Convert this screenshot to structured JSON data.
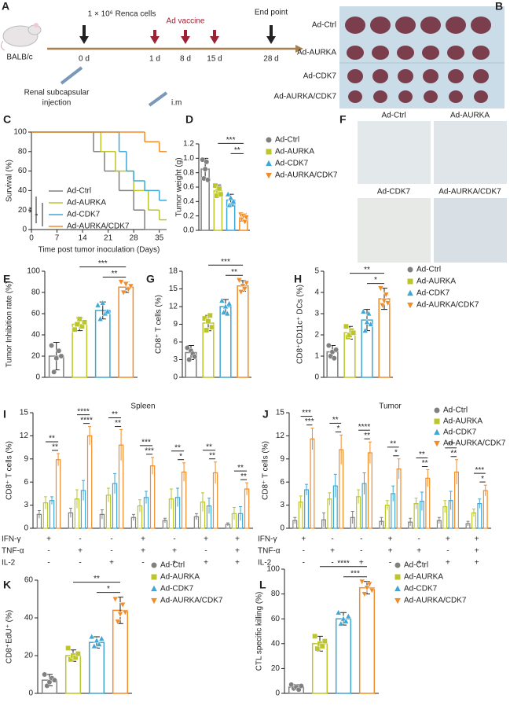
{
  "panel_a": {
    "label": "A",
    "mouse": "BALB/c",
    "cells": "1 × 10⁶ Renca cells",
    "vaccine": "Ad vaccine",
    "end": "End point",
    "days": [
      "0 d",
      "1 d",
      "8 d",
      "15 d",
      "28 d"
    ],
    "injection": [
      "Renal subcapsular",
      "injection"
    ],
    "route": "i.m"
  },
  "panel_b": {
    "label": "B",
    "rows": [
      "Ad-Ctrl",
      "Ad-AURKA",
      "Ad-CDK7",
      "Ad-AURKA/CDK7"
    ]
  },
  "panel_f": {
    "label": "F",
    "images": [
      "Ad-Ctrl",
      "Ad-AURKA",
      "Ad-CDK7",
      "Ad-AURKA/CDK7"
    ]
  },
  "chart_data": [
    {
      "panel": "C",
      "type": "survival",
      "xlabel": "Time post tumor inoculation (Days)",
      "ylabel": "Survival (%)",
      "xlim": [
        0,
        37
      ],
      "xticks": [
        0,
        7,
        14,
        21,
        28,
        35
      ],
      "ylim": [
        0,
        100
      ],
      "yticks": [
        0,
        20,
        40,
        60,
        80,
        100
      ],
      "series": [
        {
          "name": "Ad-Ctrl",
          "color": "#808080",
          "x": [
            0,
            17,
            20,
            24,
            28,
            31
          ],
          "values": [
            100,
            80,
            60,
            40,
            20,
            0
          ]
        },
        {
          "name": "Ad-AURKA",
          "color": "#bcc52a",
          "x": [
            0,
            19,
            23,
            28,
            32,
            35
          ],
          "values": [
            100,
            80,
            60,
            40,
            20,
            10
          ]
        },
        {
          "name": "Ad-CDK7",
          "color": "#3ea7d6",
          "x": [
            0,
            24,
            26,
            28,
            31,
            35
          ],
          "values": [
            100,
            80,
            60,
            50,
            40,
            30
          ]
        },
        {
          "name": "Ad-AURKA/CDK7",
          "color": "#f28c28",
          "x": [
            0,
            31,
            35
          ],
          "values": [
            100,
            90,
            80
          ]
        }
      ],
      "annotations": [
        "**",
        "*"
      ]
    },
    {
      "panel": "D",
      "type": "bar",
      "ylabel": "Tumor weight (g)",
      "ylim": [
        0,
        1.2
      ],
      "yticks": [
        {
          "value": 0,
          "label": "0.0"
        },
        0.2,
        0.4,
        0.6,
        0.8,
        {
          "value": 1,
          "label": "1.0"
        },
        1.2
      ],
      "categories": [
        "Ad-Ctrl",
        "Ad-AURKA",
        "Ad-CDK7",
        "Ad-AURKA/CDK7"
      ],
      "colors": [
        "#808080",
        "#bcc52a",
        "#3ea7d6",
        "#f28c28"
      ],
      "markers": [
        "circle",
        "square",
        "triangle-up",
        "triangle-down"
      ],
      "values": [
        0.85,
        0.55,
        0.42,
        0.18
      ],
      "errors": [
        0.15,
        0.08,
        0.08,
        0.05
      ],
      "points": [
        [
          0.98,
          0.72,
          0.85,
          0.95,
          0.7
        ],
        [
          0.62,
          0.48,
          0.55,
          0.58,
          0.5
        ],
        [
          0.5,
          0.35,
          0.45,
          0.38,
          0.4
        ],
        [
          0.22,
          0.15,
          0.2,
          0.12,
          0.18
        ]
      ],
      "annotations": [
        {
          "text": "***",
          "groups": [
            1,
            3
          ]
        },
        {
          "text": "**",
          "groups": [
            2,
            3
          ]
        }
      ]
    },
    {
      "panel": "E",
      "type": "bar",
      "ylabel": "Tumor Inhibition rate (%)",
      "ylim": [
        0,
        100
      ],
      "yticks": [
        0,
        20,
        40,
        60,
        80,
        100
      ],
      "colors": [
        "#808080",
        "#bcc52a",
        "#3ea7d6",
        "#f28c28"
      ],
      "markers": [
        "circle",
        "square",
        "triangle-up",
        "triangle-down"
      ],
      "values": [
        20,
        50,
        63,
        85
      ],
      "errors": [
        13,
        6,
        8,
        5
      ],
      "points": [
        [
          30,
          5,
          18,
          25,
          20
        ],
        [
          45,
          50,
          55,
          48,
          52
        ],
        [
          68,
          55,
          70,
          60,
          62
        ],
        [
          90,
          80,
          88,
          83,
          86
        ]
      ],
      "annotations": [
        {
          "text": "***",
          "groups": [
            1,
            3
          ]
        },
        {
          "text": "**",
          "groups": [
            2,
            3
          ]
        }
      ]
    },
    {
      "panel": "G",
      "type": "bar",
      "ylabel": "CD8⁺ T cells (%)",
      "ylim": [
        0,
        18
      ],
      "yticks": [
        0,
        3,
        6,
        9,
        12,
        15,
        18
      ],
      "colors": [
        "#808080",
        "#bcc52a",
        "#3ea7d6",
        "#f28c28"
      ],
      "markers": [
        "circle",
        "square",
        "triangle-up",
        "triangle-down"
      ],
      "values": [
        4.2,
        9.2,
        12,
        15.5
      ],
      "errors": [
        1.2,
        1.3,
        1.2,
        0.9
      ],
      "points": [
        [
          5,
          3,
          4.5,
          4,
          3.5
        ],
        [
          10,
          8,
          9.5,
          10.5,
          8.5
        ],
        [
          13,
          11,
          12,
          10.8,
          12.5
        ],
        [
          16.5,
          14.5,
          15.5,
          15,
          16
        ]
      ],
      "annotations": [
        {
          "text": "***",
          "groups": [
            1,
            3
          ]
        },
        {
          "text": "**",
          "groups": [
            2,
            3
          ]
        }
      ]
    },
    {
      "panel": "H",
      "type": "bar",
      "ylabel": "CD8⁺CD11c⁺ DCs (%)",
      "ylim": [
        0,
        5
      ],
      "yticks": [
        0,
        1,
        2,
        3,
        4,
        5
      ],
      "categories": [
        "Ad-Ctrl",
        "Ad-AURKA",
        "Ad-CDK7",
        "Ad-AURKA/CDK7"
      ],
      "colors": [
        "#808080",
        "#bcc52a",
        "#3ea7d6",
        "#f28c28"
      ],
      "markers": [
        "circle",
        "square",
        "triangle-up",
        "triangle-down"
      ],
      "values": [
        1.2,
        2.1,
        2.7,
        3.7
      ],
      "errors": [
        0.3,
        0.3,
        0.5,
        0.5
      ],
      "points": [
        [
          1.5,
          1,
          1.2,
          0.9,
          1.3
        ],
        [
          2.4,
          1.9,
          2,
          2.2,
          2.1
        ],
        [
          3.1,
          2.2,
          2.6,
          3,
          2.5
        ],
        [
          4.2,
          3.4,
          3.6,
          3.9,
          3.5
        ]
      ],
      "annotations": [
        {
          "text": "**",
          "groups": [
            1,
            3
          ]
        },
        {
          "text": "*",
          "groups": [
            2,
            3
          ]
        }
      ]
    },
    {
      "panel": "I",
      "type": "grouped-bar",
      "title": "Spleen",
      "ylabel": "CD8⁺ T cells (%)",
      "ylim": [
        0,
        15
      ],
      "yticks": [
        0,
        3,
        6,
        9,
        12,
        15
      ],
      "conditions": {
        "rows": [
          "IFN-γ",
          "TNF-α",
          "IL-2"
        ],
        "signs": [
          [
            "+",
            "-",
            "-",
            "+",
            "-",
            "+",
            "+"
          ],
          [
            "-",
            "+",
            "-",
            "+",
            "+",
            "-",
            "+"
          ],
          [
            "-",
            "-",
            "+",
            "-",
            "+",
            "+",
            "+"
          ]
        ]
      },
      "series": [
        {
          "color": "#808080",
          "values": [
            1.8,
            2,
            1.8,
            1.4,
            1,
            1.5,
            0.5
          ],
          "errors": [
            0.5,
            0.6,
            0.6,
            0.4,
            0.3,
            0.4,
            0.2
          ]
        },
        {
          "color": "#bcc52a",
          "values": [
            3.3,
            3.8,
            4.3,
            2.9,
            3.8,
            3.4,
            1.9
          ],
          "errors": [
            0.8,
            1.2,
            0.9,
            0.8,
            1.3,
            1.2,
            0.8
          ]
        },
        {
          "color": "#3ea7d6",
          "values": [
            3.6,
            4.9,
            5.8,
            4,
            4,
            2.9,
            1.9
          ],
          "errors": [
            0.5,
            1.3,
            1.3,
            0.8,
            1.2,
            1,
            0.9
          ]
        },
        {
          "color": "#f28c28",
          "values": [
            8.9,
            12,
            10.8,
            8.1,
            7.3,
            7.2,
            5.1
          ],
          "errors": [
            0.8,
            1.2,
            2,
            1.1,
            1.2,
            1.4,
            0.8
          ]
        }
      ],
      "annotations": [
        [
          "**",
          "**"
        ],
        [
          "****",
          "****"
        ],
        [
          "**",
          "**"
        ],
        [
          "***",
          "***"
        ],
        [
          "**",
          "*"
        ],
        [
          "**",
          "**"
        ],
        [
          "**",
          "**"
        ]
      ]
    },
    {
      "panel": "J",
      "type": "grouped-bar",
      "title": "Tumor",
      "ylabel": "CD8⁺ T cells (%)",
      "ylim": [
        0,
        15
      ],
      "yticks": [
        0,
        3,
        6,
        9,
        12,
        15
      ],
      "conditions": {
        "rows": [
          "IFN-γ",
          "TNF-α",
          "IL-2"
        ],
        "signs": [
          [
            "+",
            "-",
            "-",
            "+",
            "-",
            "+",
            "+"
          ],
          [
            "-",
            "+",
            "-",
            "+",
            "+",
            "-",
            "+"
          ],
          [
            "-",
            "-",
            "+",
            "-",
            "+",
            "+",
            "+"
          ]
        ]
      },
      "series": [
        {
          "name": "Ad-Ctrl",
          "color": "#808080",
          "marker": "circle",
          "values": [
            1,
            1.1,
            1.4,
            0.9,
            0.8,
            1,
            0.6
          ],
          "errors": [
            0.4,
            0.9,
            0.8,
            0.5,
            0.5,
            0.4,
            0.3
          ]
        },
        {
          "name": "Ad-AURKA",
          "color": "#bcc52a",
          "marker": "square",
          "values": [
            3.4,
            3.8,
            4.1,
            3,
            3.2,
            2.8,
            2
          ],
          "errors": [
            0.8,
            0.8,
            0.9,
            0.6,
            0.7,
            0.8,
            0.5
          ]
        },
        {
          "name": "Ad-CDK7",
          "color": "#3ea7d6",
          "marker": "triangle-up",
          "values": [
            5,
            5.5,
            5.8,
            4.5,
            3.5,
            3.6,
            3.2
          ],
          "errors": [
            0.7,
            1.5,
            1.4,
            1,
            1.2,
            1.2,
            0.6
          ]
        },
        {
          "name": "Ad-AURKA/CDK7",
          "color": "#f28c28",
          "marker": "triangle-down",
          "values": [
            11.6,
            10.2,
            9.8,
            7.7,
            6.5,
            7.3,
            4.9
          ],
          "errors": [
            1.4,
            1.9,
            1.4,
            1.3,
            1.1,
            1.6,
            0.7
          ]
        }
      ],
      "legend": true,
      "annotations": [
        [
          "***",
          "***"
        ],
        [
          "**",
          "*"
        ],
        [
          "****",
          "**"
        ],
        [
          "**",
          "*"
        ],
        [
          "**",
          "**"
        ],
        [
          "**",
          "**"
        ],
        [
          "***",
          "*"
        ]
      ]
    },
    {
      "panel": "K",
      "type": "bar",
      "ylabel": "CD8⁺EdU⁺ (%)",
      "ylim": [
        0,
        60
      ],
      "yticks": [
        0,
        20,
        40,
        60
      ],
      "categories": [
        "Ad-Ctrl",
        "Ad-AURKA",
        "Ad-CDK7",
        "Ad-AURKA/CDK7"
      ],
      "colors": [
        "#808080",
        "#bcc52a",
        "#3ea7d6",
        "#f28c28"
      ],
      "markers": [
        "circle",
        "square",
        "triangle-up",
        "triangle-down"
      ],
      "values": [
        7,
        20,
        27,
        44
      ],
      "errors": [
        3,
        3,
        3,
        7
      ],
      "points": [
        [
          10,
          4,
          6,
          8,
          7
        ],
        [
          24,
          18,
          20,
          19,
          21
        ],
        [
          30,
          25,
          28,
          26,
          29
        ],
        [
          50,
          38,
          42,
          47,
          43
        ]
      ],
      "annotations": [
        {
          "text": "**",
          "groups": [
            1,
            3
          ]
        },
        {
          "text": "*",
          "groups": [
            2,
            3
          ]
        }
      ]
    },
    {
      "panel": "L",
      "type": "bar",
      "ylabel": "CTL specific killing (%)",
      "ylim": [
        0,
        100
      ],
      "yticks": [
        0,
        20,
        40,
        60,
        80,
        100
      ],
      "categories": [
        "Ad-Ctrl",
        "Ad-AURKA",
        "Ad-CDK7",
        "Ad-AURKA/CDK7"
      ],
      "colors": [
        "#808080",
        "#bcc52a",
        "#3ea7d6",
        "#f28c28"
      ],
      "markers": [
        "circle",
        "square",
        "triangle-up",
        "triangle-down"
      ],
      "values": [
        5,
        40,
        60,
        85
      ],
      "errors": [
        2,
        6,
        5,
        5
      ],
      "points": [
        [
          7,
          4,
          5,
          3,
          6
        ],
        [
          46,
          36,
          40,
          38,
          42
        ],
        [
          65,
          56,
          60,
          58,
          62
        ],
        [
          90,
          80,
          85,
          88,
          83
        ]
      ],
      "annotations": [
        {
          "text": "****",
          "groups": [
            1,
            3
          ]
        },
        {
          "text": "***",
          "groups": [
            2,
            3
          ]
        }
      ]
    }
  ]
}
